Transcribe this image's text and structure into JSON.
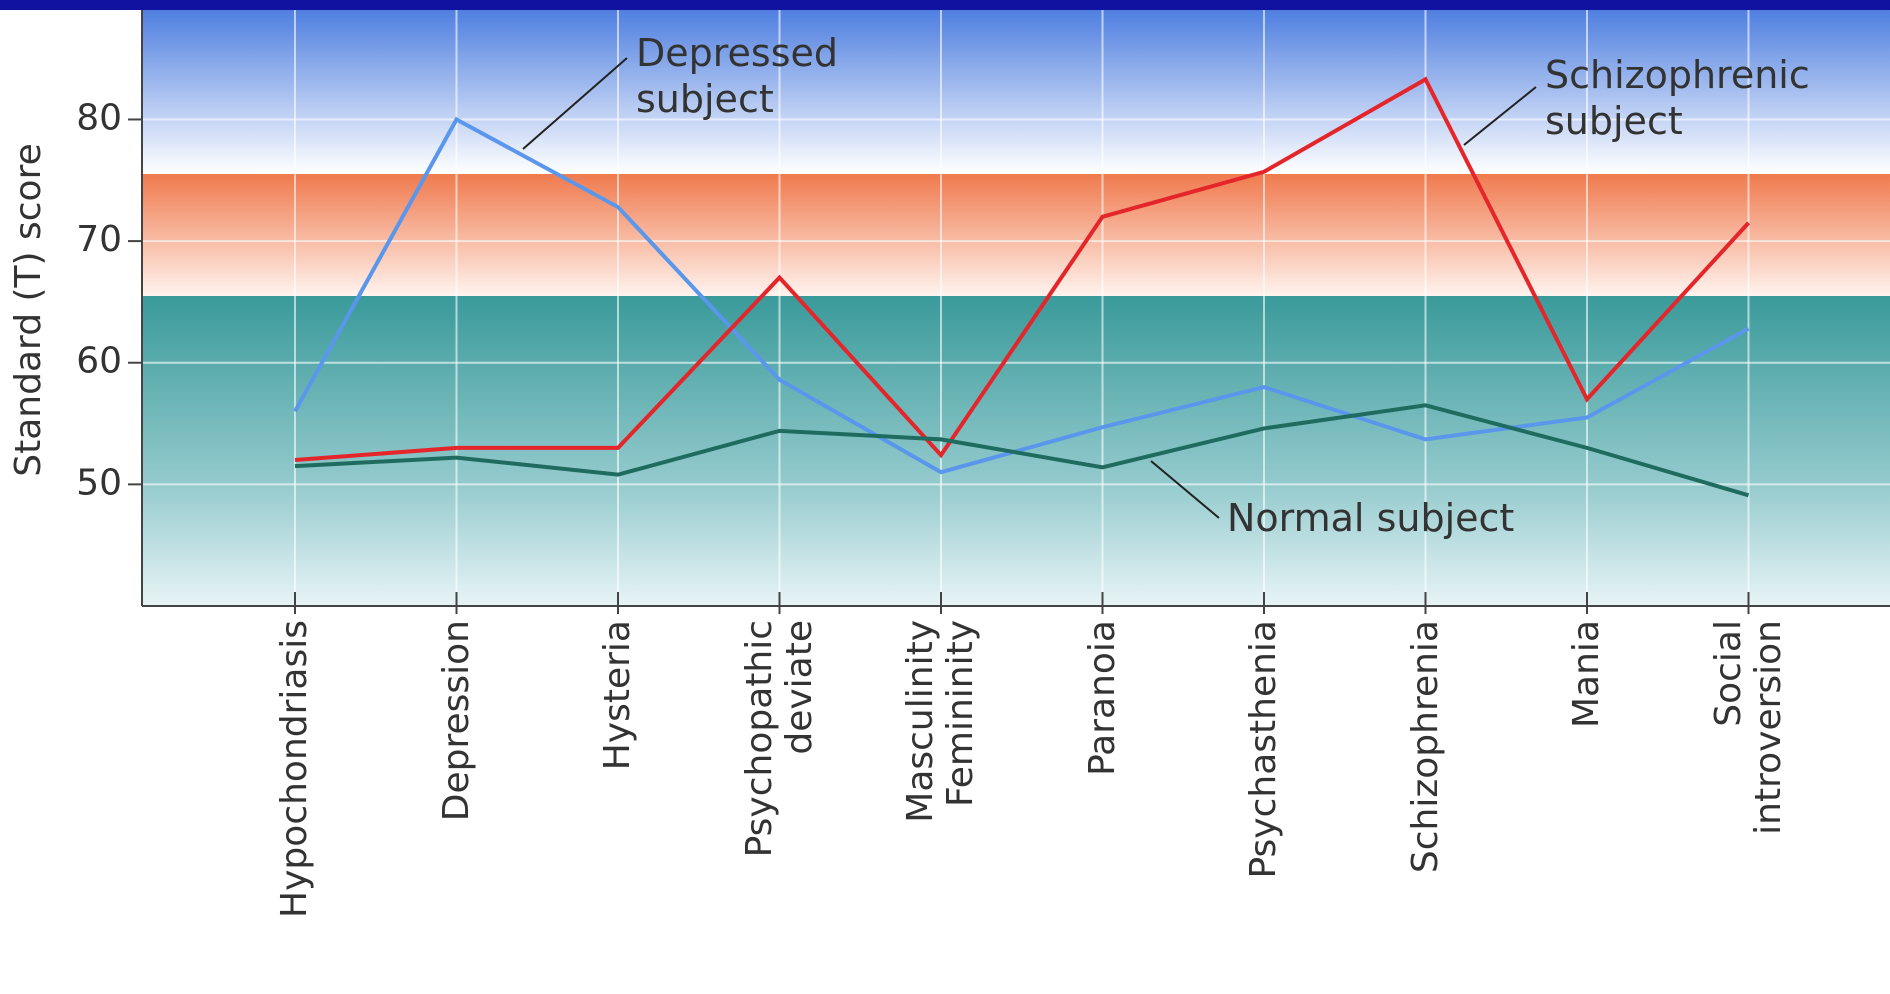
{
  "chart_data": {
    "type": "line",
    "y_label": "Standard (T) score",
    "categories": [
      "Hypochondriasis",
      "Depression",
      "Hysteria",
      "Psychopathic\ndeviate",
      "Masculinity\nFemininity",
      "Paranoia",
      "Psychasthenia",
      "Schizophrenia",
      "Mania",
      "Social\nintroversion"
    ],
    "series": [
      {
        "name": "Depressed\nsubject",
        "color": "#5a97ec",
        "values": [
          56,
          80,
          72.8,
          58.6,
          51,
          54.7,
          58,
          53.7,
          55.5,
          62.8
        ]
      },
      {
        "name": "Schizophrenic\nsubject",
        "color": "#e4262b",
        "values": [
          52,
          53,
          53,
          67,
          52.4,
          72,
          75.7,
          83.3,
          57,
          71.5
        ]
      },
      {
        "name": "Normal subject",
        "color": "#1f6b5f",
        "values": [
          51.5,
          52.2,
          50.8,
          54.4,
          53.7,
          51.4,
          54.6,
          56.5,
          53,
          49.1
        ]
      }
    ],
    "ylim": [
      40,
      89
    ],
    "yticks": [
      50,
      60,
      70,
      80
    ],
    "grid": true
  }
}
